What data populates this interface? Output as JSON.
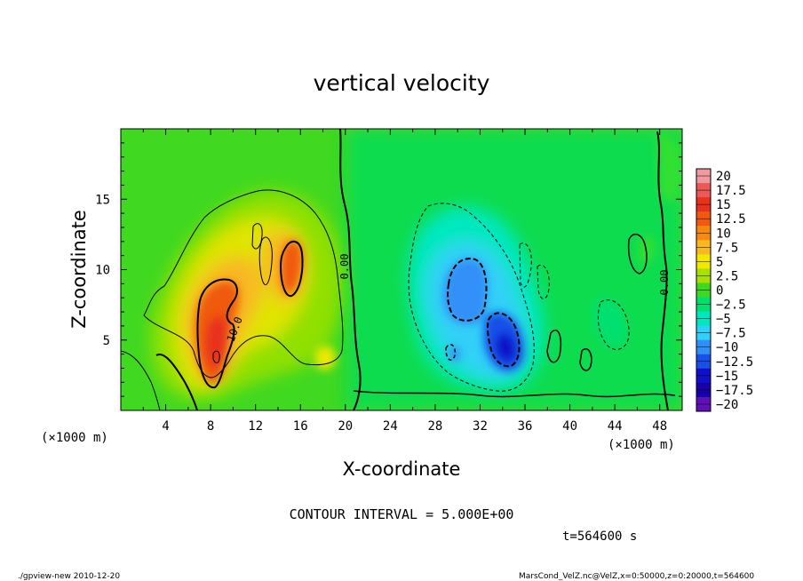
{
  "chart_data": {
    "type": "heatmap",
    "title": "vertical velocity",
    "xlabel": "X-coordinate",
    "ylabel": "Z-coordinate",
    "x_unit": "(×1000 m)",
    "y_unit": "(×1000 m)",
    "xlim": [
      0,
      50
    ],
    "ylim": [
      0,
      20
    ],
    "x_ticks": [
      "4",
      "8",
      "12",
      "16",
      "20",
      "24",
      "28",
      "32",
      "36",
      "40",
      "44",
      "48"
    ],
    "y_ticks": [
      "5",
      "10",
      "15"
    ],
    "colorbar_levels": [
      "20",
      "17.5",
      "15",
      "12.5",
      "10",
      "7.5",
      "5",
      "2.5",
      "0",
      "−2.5",
      "−5",
      "−7.5",
      "−10",
      "−12.5",
      "−15",
      "−17.5",
      "−20"
    ],
    "colorbar_colors": [
      "#f09aa0",
      "#ea5a58",
      "#e8321c",
      "#f05a10",
      "#f68a10",
      "#f8b820",
      "#f0e800",
      "#a8e000",
      "#40d820",
      "#00e070",
      "#00e8c0",
      "#30d0f8",
      "#3090f8",
      "#1850e8",
      "#1010c8",
      "#1800a8",
      "#6010b8"
    ],
    "contour_labels": [
      "0.00",
      "10.0",
      "0.00"
    ],
    "contour_interval": "CONTOUR INTERVAL = 5.000E+00",
    "time_label": "t=564600 s",
    "features": [
      {
        "kind": "updraft",
        "x": 9,
        "z": 5,
        "peak": 14
      },
      {
        "kind": "updraft",
        "x": 15.5,
        "z": 11,
        "peak": 12
      },
      {
        "kind": "downdraft",
        "x": 31,
        "z": 8.5,
        "peak": -11
      },
      {
        "kind": "downdraft",
        "x": 34,
        "z": 4.5,
        "peak": -13
      }
    ]
  },
  "footer": {
    "left": "./gpview-new  2010-12-20",
    "right": "MarsCond_VelZ.nc@VelZ,x=0:50000,z=0:20000,t=564600"
  }
}
